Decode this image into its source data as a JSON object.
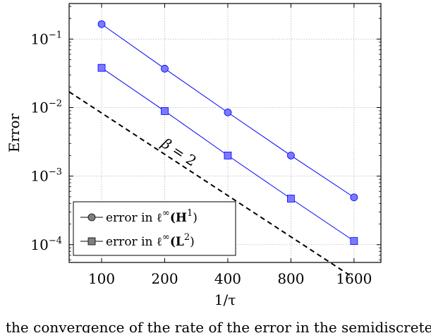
{
  "chart_data": {
    "type": "line",
    "xscale": "log2",
    "yscale": "log10",
    "x": [
      100,
      200,
      400,
      800,
      1600
    ],
    "xticks": [
      "100",
      "200",
      "400",
      "800",
      "1600"
    ],
    "yticks": [
      {
        "base": "10",
        "exp": "−1",
        "value": 0.1
      },
      {
        "base": "10",
        "exp": "−2",
        "value": 0.01
      },
      {
        "base": "10",
        "exp": "−3",
        "value": 0.001
      },
      {
        "base": "10",
        "exp": "−4",
        "value": 0.0001
      }
    ],
    "xlabel": "1/τ",
    "ylabel": "Error",
    "xlim": [
      70,
      2150
    ],
    "ylim": [
      5.5e-05,
      0.33
    ],
    "grid": true,
    "legend_position": "bottom-left",
    "series": [
      {
        "name_prefix": "error in ℓ",
        "name_sup": "∞",
        "name_body": "(H",
        "name_body_sup": "1",
        "name_suffix": ")",
        "marker": "circle",
        "color": "#0000ff",
        "fill": "#7a7aff",
        "values": [
          0.165,
          0.037,
          0.0085,
          0.002,
          0.00049
        ]
      },
      {
        "name_prefix": "error in ℓ",
        "name_sup": "∞",
        "name_body": "(L",
        "name_body_sup": "2",
        "name_suffix": ")",
        "marker": "square",
        "color": "#0000ff",
        "fill": "#7a7aff",
        "values": [
          0.038,
          0.0089,
          0.002,
          0.00047,
          0.000113
        ]
      }
    ],
    "reference_line": {
      "label_beta": "β",
      "label_eq": " = 2",
      "style": "dashed",
      "color": "#000000",
      "slope": -2,
      "x_start": 70,
      "y_start": 0.017,
      "x_end": 1550
    },
    "legend_marker_color": "#7f7f7f"
  },
  "caption_text": "the convergence of the rate of the error in the semidiscrete scheme."
}
